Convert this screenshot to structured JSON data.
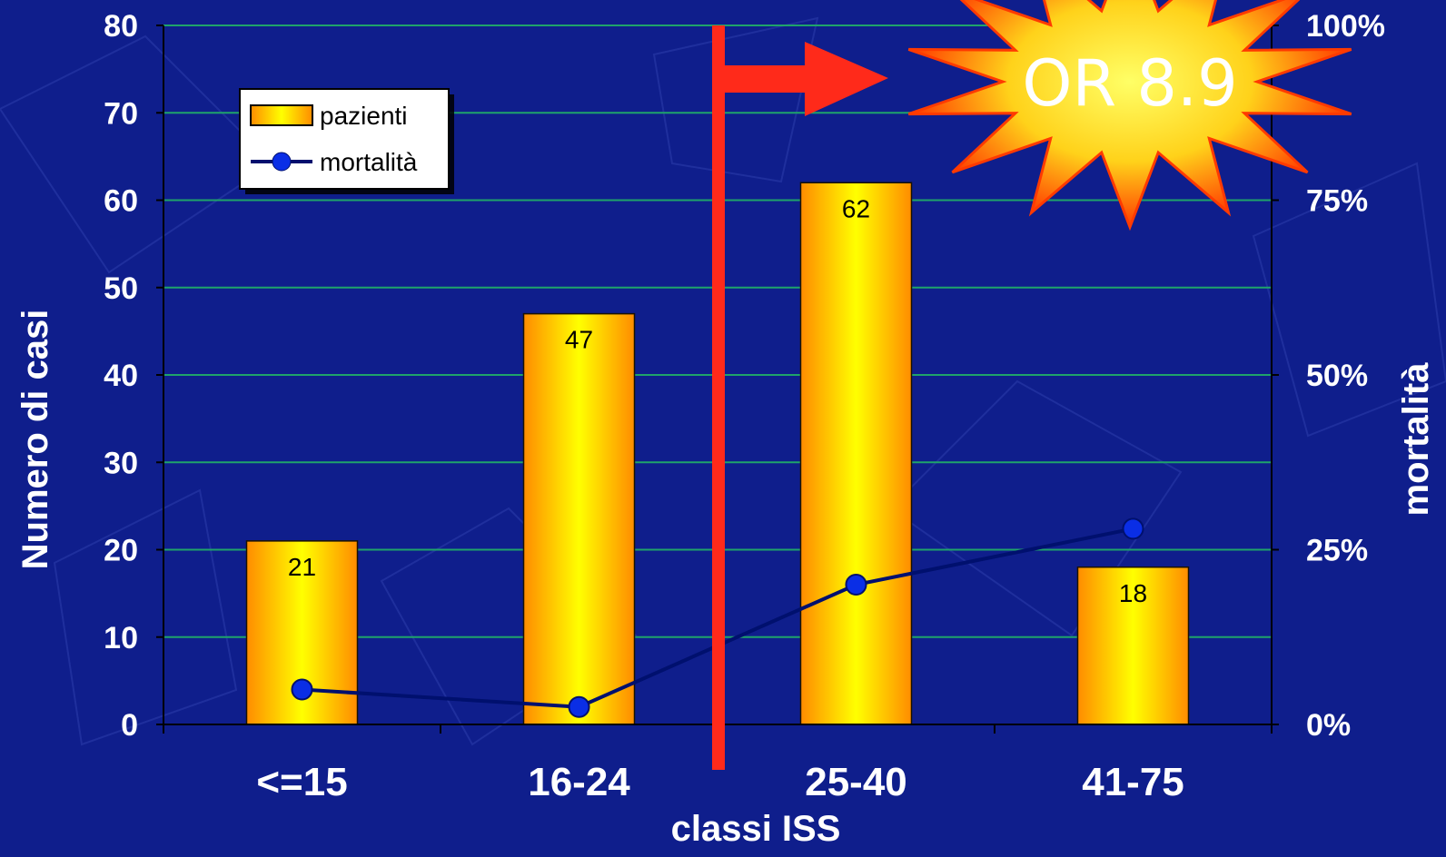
{
  "chart_data": {
    "type": "bar",
    "xlabel": "classi ISS",
    "ylabel": "Numero di casi",
    "y2label": "mortalità",
    "categories": [
      "<=15",
      "16-24",
      "25-40",
      "41-75"
    ],
    "series": [
      {
        "name": "pazienti",
        "type": "bar",
        "axis": "left",
        "values": [
          21,
          47,
          62,
          18
        ],
        "data_labels": [
          "21",
          "47",
          "62",
          "18"
        ]
      },
      {
        "name": "mortalità",
        "type": "line",
        "axis": "right",
        "values": [
          5,
          2.5,
          20,
          28
        ]
      }
    ],
    "ylim": [
      0,
      80
    ],
    "yticks": [
      0,
      10,
      20,
      30,
      40,
      50,
      60,
      70,
      80
    ],
    "ytick_labels": [
      "0",
      "10",
      "20",
      "30",
      "40",
      "50",
      "60",
      "70",
      "80"
    ],
    "y2lim": [
      0,
      100
    ],
    "y2ticks": [
      0,
      25,
      50,
      75,
      100
    ],
    "y2tick_labels": [
      "0%",
      "25%",
      "50%",
      "75%",
      "100%"
    ],
    "grid": true,
    "legend_position": "top-left",
    "annotations": {
      "burst_text": "OR 8.9",
      "divider_between": [
        "16-24",
        "25-40"
      ]
    },
    "colors": {
      "background": "#0f1e8c",
      "bar_edge": "#ff8c00",
      "bar_center": "#ffff00",
      "line": "#00106e",
      "marker": "#0a2ee6",
      "gridline": "#1fa36a",
      "divider": "#ff2a1a",
      "burst_outer": "#ff3a00",
      "burst_inner": "#ffd21a"
    }
  }
}
